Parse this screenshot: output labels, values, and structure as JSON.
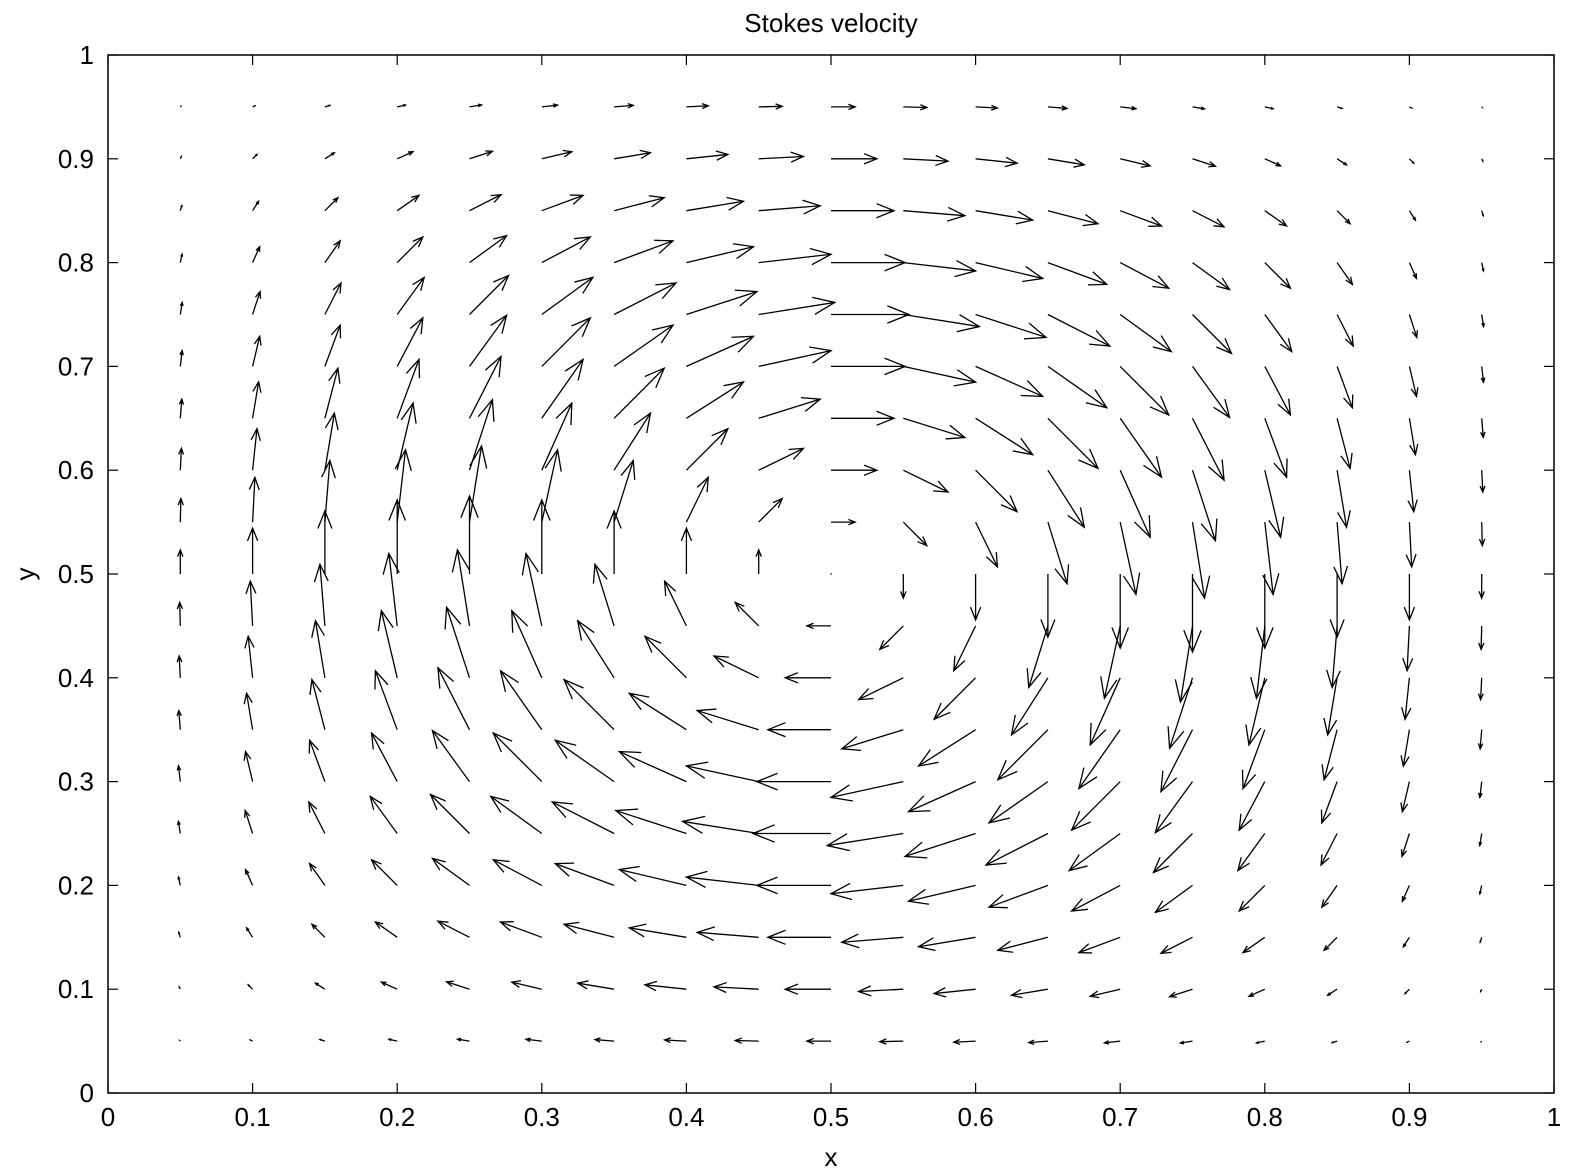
{
  "chart_data": {
    "type": "quiver",
    "title": "Stokes velocity",
    "xlabel": "x",
    "ylabel": "y",
    "xlim": [
      0,
      1
    ],
    "ylim": [
      0,
      1
    ],
    "xticks": [
      "0",
      "0.1",
      "0.2",
      "0.3",
      "0.4",
      "0.5",
      "0.6",
      "0.7",
      "0.8",
      "0.9",
      "1"
    ],
    "yticks": [
      "0",
      "0.1",
      "0.2",
      "0.3",
      "0.4",
      "0.5",
      "0.6",
      "0.7",
      "0.8",
      "0.9",
      "1"
    ],
    "grid": false,
    "vortex_center": [
      0.5,
      0.5
    ],
    "sampling": {
      "x_start": 0.05,
      "x_step": 0.05,
      "x_count": 19,
      "y_start": 0.05,
      "y_step": 0.05,
      "y_count": 19
    },
    "field": "u = sin(pi x)^2 * sin(2 pi y); v = -sin(2 pi x) * sin(pi y)^2",
    "arrow_color": "#000000"
  }
}
